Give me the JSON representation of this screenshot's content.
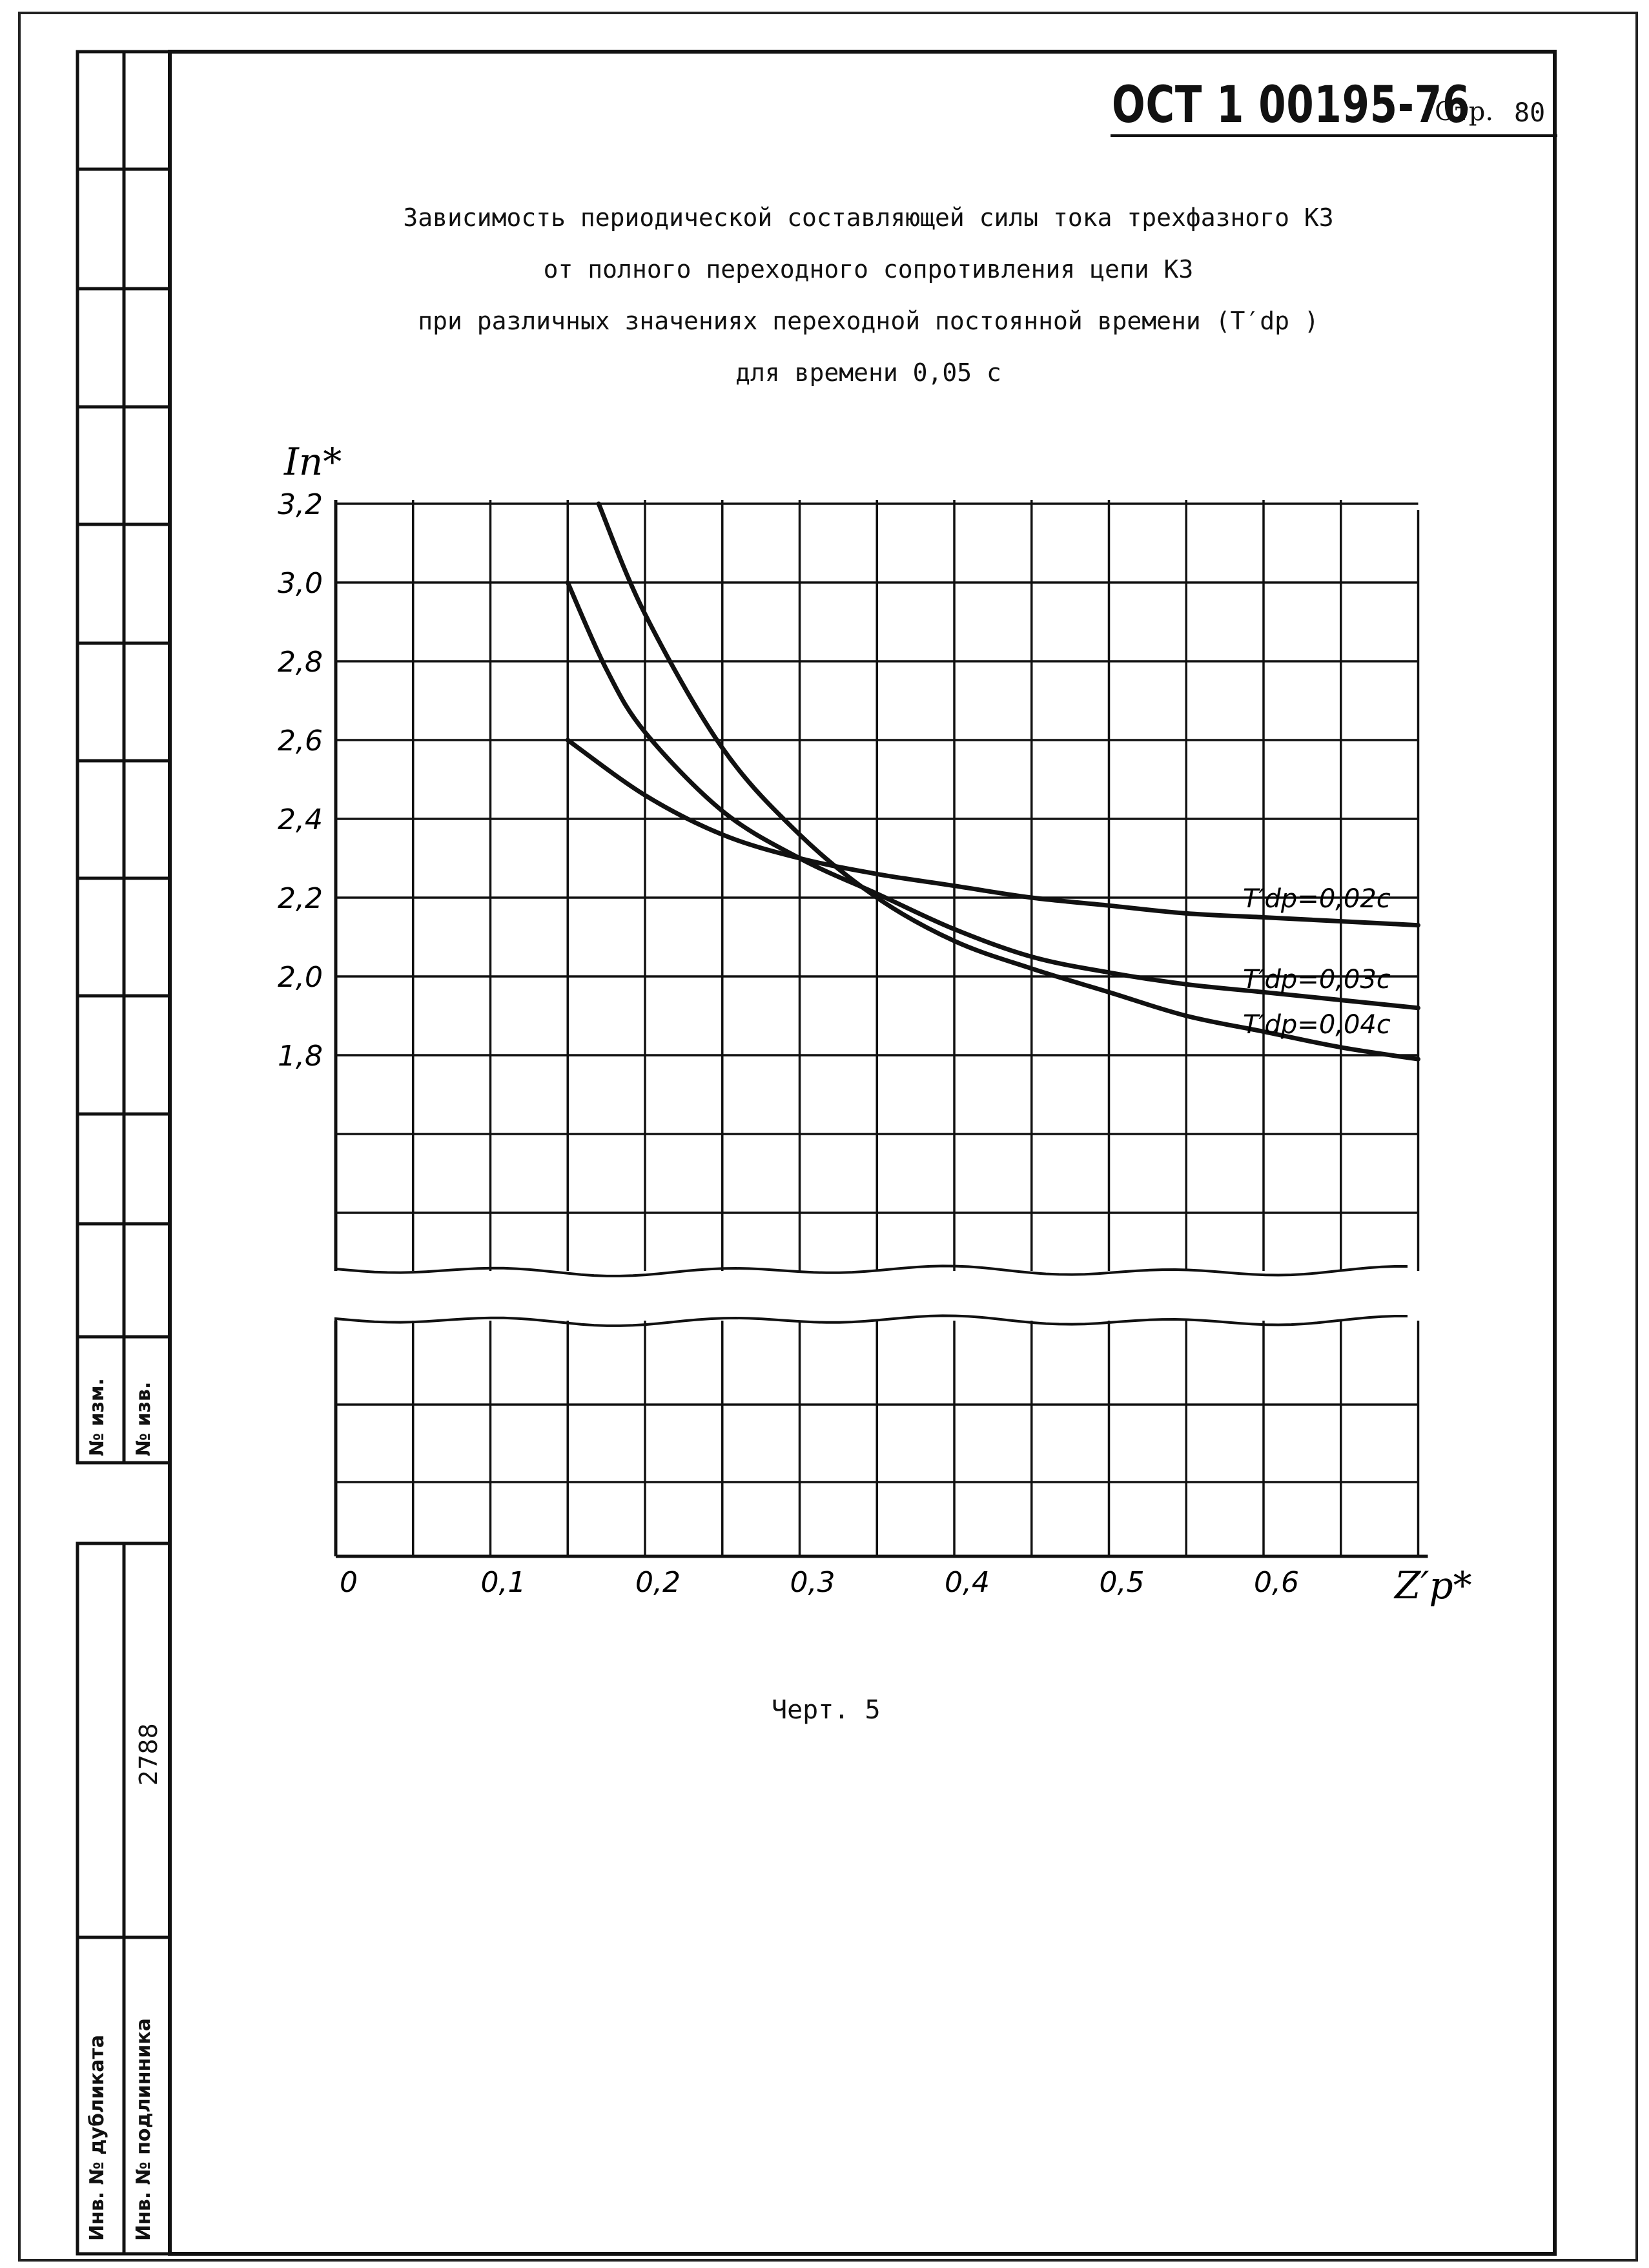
{
  "header": {
    "doc_code": "ОСТ 1 00195-76",
    "page_label": "Стр.",
    "page_number": "80"
  },
  "title_lines": [
    "Зависимость периодической составляющей силы тока трехфазного КЗ",
    "от полного переходного сопротивления цепи КЗ",
    "при различных значениях переходной постоянной времени (T′dp )",
    "для времени 0,05 с"
  ],
  "figure_caption": "Черт. 5",
  "side_stamp": {
    "change_no": "№ изм.",
    "notice_no": "№ изв.",
    "duplicate_inv": "Инв. № дубликата",
    "original_inv": "Инв. № подлинника",
    "archive_number": "2788"
  },
  "chart_data": {
    "type": "line",
    "title": "",
    "xlabel": "Z′p*",
    "ylabel": "In*",
    "xlim": [
      0,
      0.7
    ],
    "ylim": [
      1.8,
      3.2
    ],
    "x_ticks": [
      "0",
      "0,1",
      "0,2",
      "0,3",
      "0,4",
      "0,5",
      "0,6"
    ],
    "y_ticks": [
      "3,2",
      "3,0",
      "2,8",
      "2,6",
      "2,4",
      "2,2",
      "2,0",
      "1,8"
    ],
    "grid": true,
    "axis_break": true,
    "series": [
      {
        "name": "T′dp=0,02с",
        "x": [
          0.15,
          0.2,
          0.25,
          0.3,
          0.35,
          0.4,
          0.45,
          0.5,
          0.55,
          0.6,
          0.65,
          0.7
        ],
        "y": [
          2.6,
          2.46,
          2.36,
          2.3,
          2.26,
          2.23,
          2.2,
          2.18,
          2.16,
          2.15,
          2.14,
          2.13
        ]
      },
      {
        "name": "T′dp=0,03с",
        "x": [
          0.15,
          0.175,
          0.2,
          0.25,
          0.3,
          0.35,
          0.4,
          0.45,
          0.5,
          0.55,
          0.6,
          0.65,
          0.7
        ],
        "y": [
          3.0,
          2.78,
          2.62,
          2.42,
          2.3,
          2.21,
          2.12,
          2.05,
          2.01,
          1.98,
          1.96,
          1.94,
          1.92
        ]
      },
      {
        "name": "T′dp=0,04с",
        "x": [
          0.17,
          0.2,
          0.25,
          0.3,
          0.35,
          0.4,
          0.45,
          0.5,
          0.55,
          0.6,
          0.65,
          0.7
        ],
        "y": [
          3.2,
          2.92,
          2.58,
          2.36,
          2.2,
          2.09,
          2.02,
          1.96,
          1.9,
          1.86,
          1.82,
          1.79
        ]
      }
    ]
  }
}
